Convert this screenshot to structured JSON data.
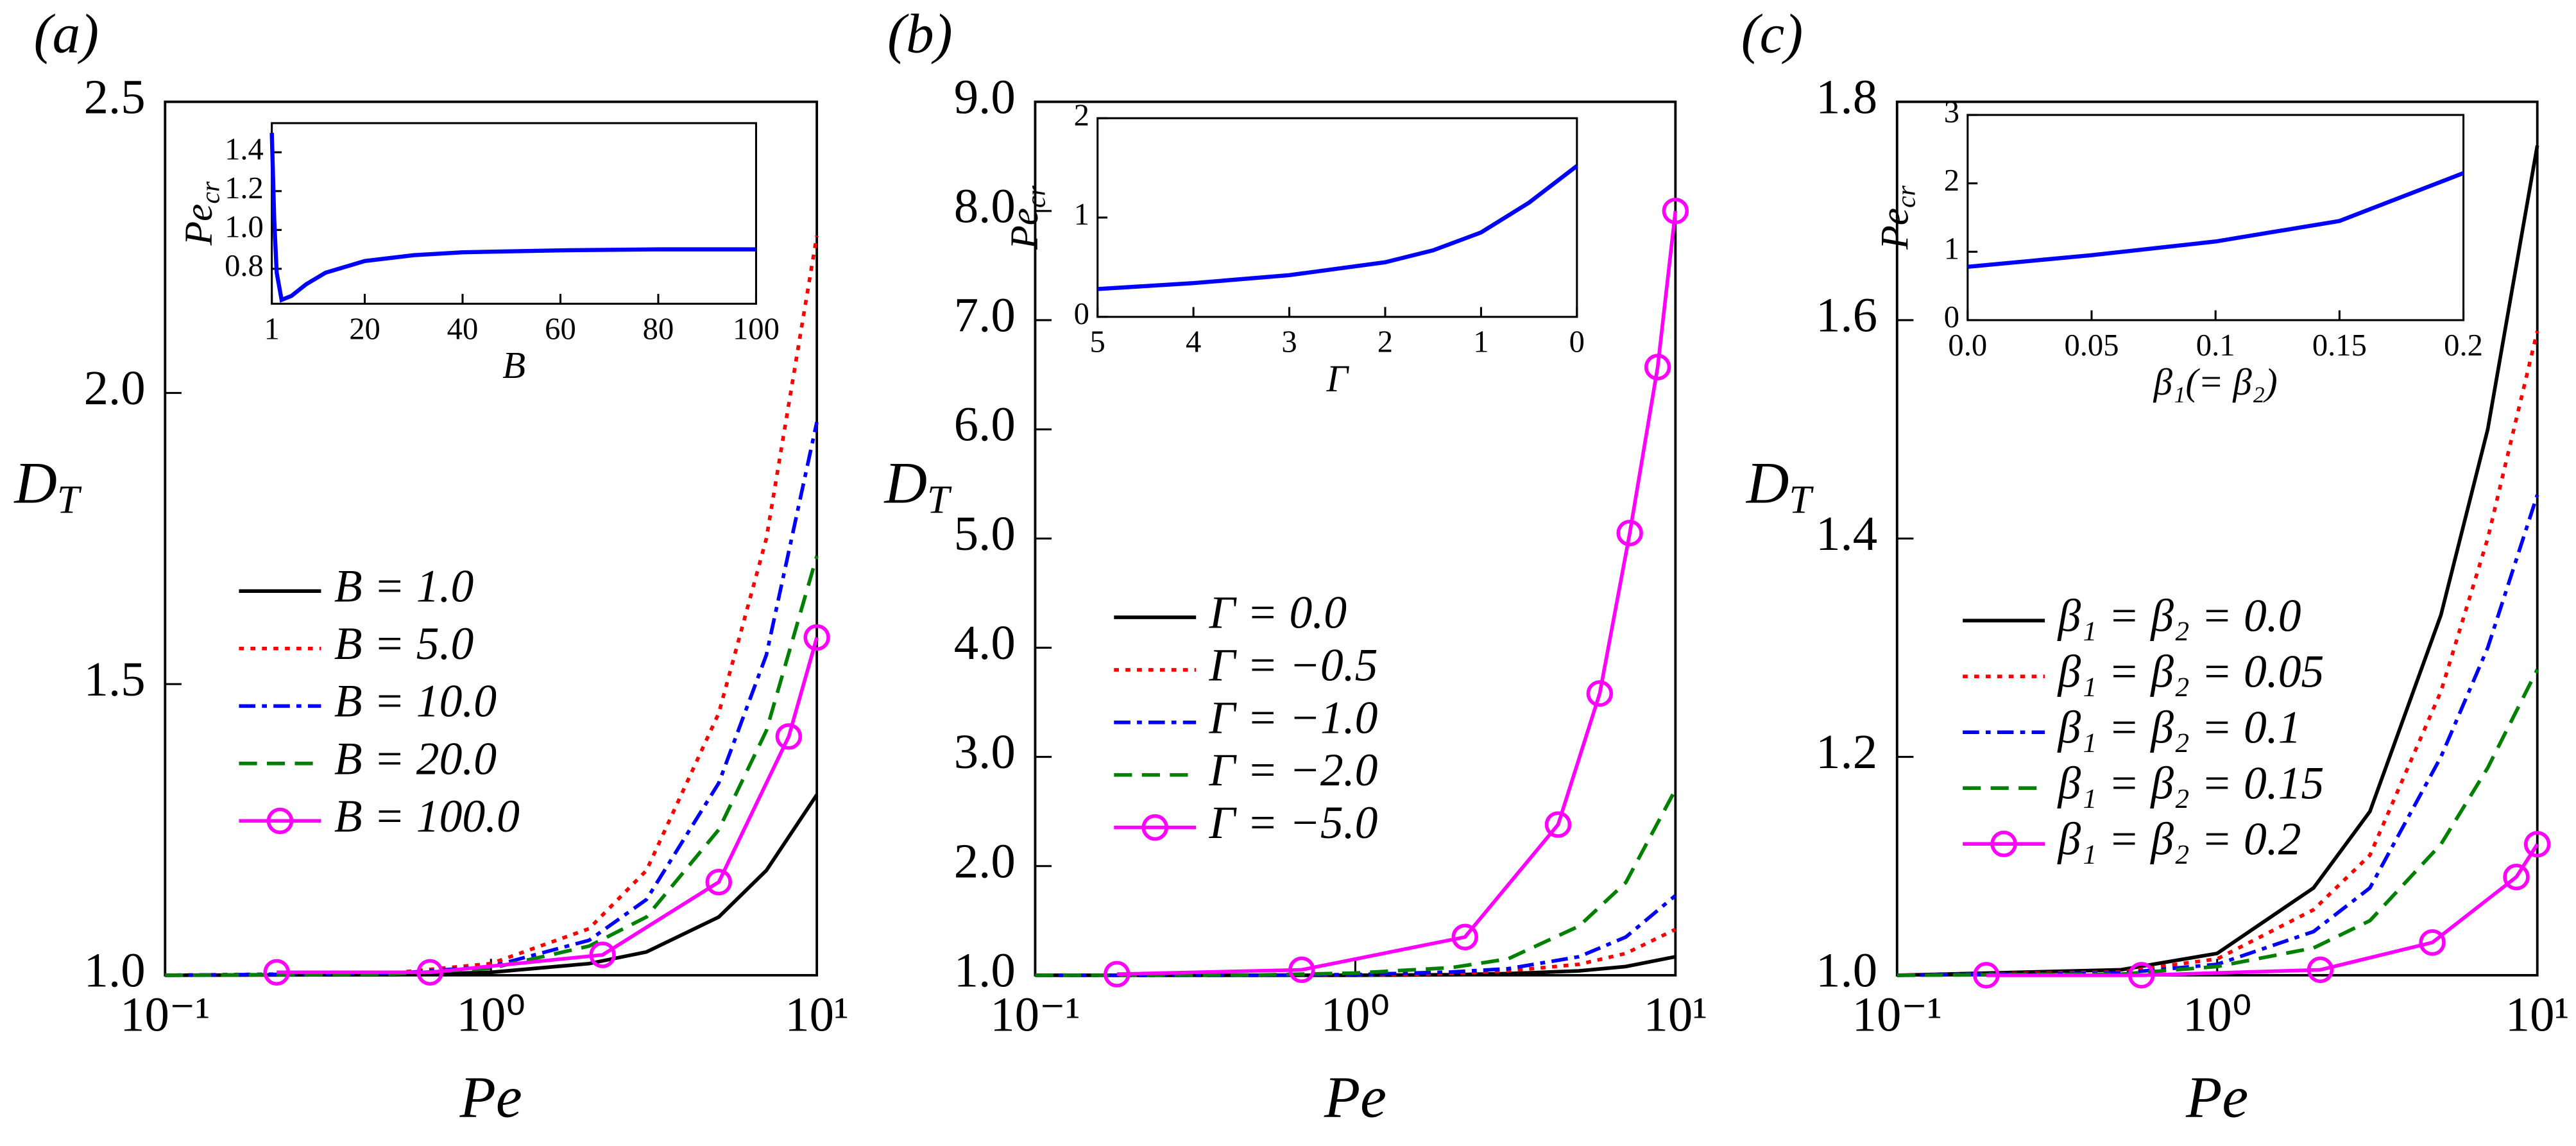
{
  "chart_data": [
    {
      "type": "line",
      "panel_label": "(a)",
      "xlabel": "Pe",
      "ylabel": [
        "D",
        "T"
      ],
      "xscale": "log",
      "xlim": [
        0.1,
        10
      ],
      "xticks": [
        {
          "value": 0.1,
          "label": "10⁻¹"
        },
        {
          "value": 1,
          "label": "10⁰"
        },
        {
          "value": 10,
          "label": "10¹"
        }
      ],
      "ylim": [
        1.0,
        2.5
      ],
      "yticks": [
        {
          "value": 1.0,
          "label": "1.0"
        },
        {
          "value": 1.5,
          "label": "1.5"
        },
        {
          "value": 2.0,
          "label": "2.0"
        },
        {
          "value": 2.5,
          "label": "2.5"
        }
      ],
      "series": [
        {
          "name": "B = 1.0",
          "color": "#000000",
          "dash": "solid",
          "x": [
            0.1,
            0.5,
            1,
            2,
            3,
            5,
            7,
            10
          ],
          "values": [
            1.0,
            1.001,
            1.005,
            1.02,
            1.04,
            1.1,
            1.18,
            1.31
          ]
        },
        {
          "name": "B = 5.0",
          "color": "#ff0000",
          "dash": "dotted",
          "x": [
            0.1,
            0.5,
            1,
            2,
            3,
            5,
            7,
            10
          ],
          "values": [
            1.0,
            1.004,
            1.02,
            1.08,
            1.18,
            1.45,
            1.75,
            2.27
          ]
        },
        {
          "name": "B = 10.0",
          "color": "#0000ff",
          "dash": "dashdot",
          "x": [
            0.1,
            0.5,
            1,
            2,
            3,
            5,
            7,
            10
          ],
          "values": [
            1.0,
            1.003,
            1.015,
            1.06,
            1.13,
            1.33,
            1.55,
            1.95
          ]
        },
        {
          "name": "B = 20.0",
          "color": "#008000",
          "dash": "dashed",
          "x": [
            0.1,
            0.5,
            1,
            2,
            3,
            5,
            7,
            10
          ],
          "values": [
            1.0,
            1.002,
            1.012,
            1.05,
            1.1,
            1.25,
            1.42,
            1.72
          ]
        },
        {
          "name": "B = 100.0",
          "color": "#ff00ff",
          "dash": "solid",
          "marker": "circle",
          "x": [
            0.22,
            0.65,
            2.2,
            5,
            8.2,
            10
          ],
          "values": [
            1.005,
            1.005,
            1.035,
            1.16,
            1.41,
            1.58
          ]
        }
      ],
      "inset": {
        "type": "line",
        "xlabel": "B",
        "ylabel": [
          "Pe",
          "cr"
        ],
        "xlim": [
          1,
          100
        ],
        "xticks": [
          1,
          20,
          40,
          60,
          80,
          100
        ],
        "ylim": [
          0.62,
          1.55
        ],
        "yticks": [
          {
            "value": 0.8,
            "label": "0.8"
          },
          {
            "value": 1.0,
            "label": "1.0"
          },
          {
            "value": 1.2,
            "label": "1.2"
          },
          {
            "value": 1.4,
            "label": "1.4"
          }
        ],
        "series": [
          {
            "color": "#0000ff",
            "x": [
              1,
              1.5,
              2,
              3,
              5,
              8,
              12,
              20,
              30,
              40,
              60,
              80,
              100
            ],
            "values": [
              1.5,
              1.05,
              0.78,
              0.64,
              0.66,
              0.72,
              0.78,
              0.84,
              0.87,
              0.885,
              0.895,
              0.9,
              0.9
            ]
          }
        ]
      }
    },
    {
      "type": "line",
      "panel_label": "(b)",
      "xlabel": "Pe",
      "ylabel": [
        "D",
        "T"
      ],
      "xscale": "log",
      "xlim": [
        0.1,
        10
      ],
      "xticks": [
        {
          "value": 0.1,
          "label": "10⁻¹"
        },
        {
          "value": 1,
          "label": "10⁰"
        },
        {
          "value": 10,
          "label": "10¹"
        }
      ],
      "ylim": [
        1.0,
        9.0
      ],
      "yticks": [
        {
          "value": 1,
          "label": "1.0"
        },
        {
          "value": 2,
          "label": "2.0"
        },
        {
          "value": 3,
          "label": "3.0"
        },
        {
          "value": 4,
          "label": "4.0"
        },
        {
          "value": 5,
          "label": "5.0"
        },
        {
          "value": 6,
          "label": "6.0"
        },
        {
          "value": 7,
          "label": "7.0"
        },
        {
          "value": 8,
          "label": "8.0"
        },
        {
          "value": 9,
          "label": "9.0"
        }
      ],
      "series": [
        {
          "name": "Γ = 0.0",
          "color": "#000000",
          "dash": "solid",
          "x": [
            0.1,
            0.5,
            1,
            2,
            3,
            5,
            7,
            10
          ],
          "values": [
            1.0,
            1.0,
            1.0,
            1.005,
            1.015,
            1.04,
            1.08,
            1.17
          ]
        },
        {
          "name": "Γ = −0.5",
          "color": "#ff0000",
          "dash": "dotted",
          "x": [
            0.1,
            0.5,
            1,
            2,
            3,
            5,
            7,
            10
          ],
          "values": [
            1.0,
            1.0,
            1.003,
            1.015,
            1.04,
            1.1,
            1.2,
            1.42
          ]
        },
        {
          "name": "Γ = −1.0",
          "color": "#0000ff",
          "dash": "dashdot",
          "x": [
            0.1,
            0.5,
            1,
            2,
            3,
            5,
            7,
            10
          ],
          "values": [
            1.0,
            1.0,
            1.006,
            1.03,
            1.06,
            1.17,
            1.35,
            1.73
          ]
        },
        {
          "name": "Γ = −2.0",
          "color": "#008000",
          "dash": "dashed",
          "x": [
            0.1,
            0.5,
            1,
            2,
            3,
            5,
            7,
            10
          ],
          "values": [
            1.0,
            1.002,
            1.02,
            1.07,
            1.15,
            1.45,
            1.85,
            2.7
          ]
        },
        {
          "name": "Γ = −5.0",
          "color": "#ff00ff",
          "dash": "solid",
          "marker": "circle",
          "x": [
            0.18,
            0.68,
            2.2,
            4.3,
            5.8,
            7.2,
            8.8,
            10
          ],
          "values": [
            1.01,
            1.05,
            1.35,
            2.38,
            3.58,
            5.05,
            6.57,
            8.0
          ]
        }
      ],
      "inset": {
        "type": "line",
        "xlabel": "Γ",
        "ylabel": [
          "Pe",
          "cr"
        ],
        "xlim": [
          5,
          0
        ],
        "xticks": [
          5,
          4,
          3,
          2,
          1,
          0
        ],
        "ylim": [
          0,
          2
        ],
        "yticks": [
          0,
          1,
          2
        ],
        "series": [
          {
            "color": "#0000ff",
            "x": [
              5,
              4,
              3,
              2,
              1.5,
              1,
              0.5,
              0
            ],
            "values": [
              0.28,
              0.34,
              0.42,
              0.55,
              0.67,
              0.85,
              1.15,
              1.52
            ]
          }
        ]
      }
    },
    {
      "type": "line",
      "panel_label": "(c)",
      "xlabel": "Pe",
      "ylabel": [
        "D",
        "T"
      ],
      "xscale": "log",
      "xlim": [
        0.1,
        10
      ],
      "xticks": [
        {
          "value": 0.1,
          "label": "10⁻¹"
        },
        {
          "value": 1,
          "label": "10⁰"
        },
        {
          "value": 10,
          "label": "10¹"
        }
      ],
      "ylim": [
        1.0,
        1.8
      ],
      "yticks": [
        {
          "value": 1.0,
          "label": "1.0"
        },
        {
          "value": 1.2,
          "label": "1.2"
        },
        {
          "value": 1.4,
          "label": "1.4"
        },
        {
          "value": 1.6,
          "label": "1.6"
        },
        {
          "value": 1.8,
          "label": "1.8"
        }
      ],
      "series": [
        {
          "name": "β₁ = β₂ = 0.0",
          "color": "#000000",
          "dash": "solid",
          "x": [
            0.1,
            0.5,
            1,
            2,
            3,
            5,
            7,
            10
          ],
          "values": [
            1.0,
            1.005,
            1.02,
            1.08,
            1.15,
            1.33,
            1.5,
            1.76
          ]
        },
        {
          "name": "β₁ = β₂ = 0.05",
          "color": "#ff0000",
          "dash": "dotted",
          "x": [
            0.1,
            0.5,
            1,
            2,
            3,
            5,
            7,
            10
          ],
          "values": [
            1.0,
            1.003,
            1.015,
            1.06,
            1.11,
            1.26,
            1.4,
            1.59
          ]
        },
        {
          "name": "β₁ = β₂ = 0.1",
          "color": "#0000ff",
          "dash": "dashdot",
          "x": [
            0.1,
            0.5,
            1,
            2,
            3,
            5,
            7,
            10
          ],
          "values": [
            1.0,
            1.002,
            1.01,
            1.04,
            1.08,
            1.2,
            1.3,
            1.44
          ]
        },
        {
          "name": "β₁ = β₂ = 0.15",
          "color": "#008000",
          "dash": "dashed",
          "x": [
            0.1,
            0.5,
            1,
            2,
            3,
            5,
            7,
            10
          ],
          "values": [
            1.0,
            1.001,
            1.008,
            1.025,
            1.05,
            1.12,
            1.19,
            1.28
          ]
        },
        {
          "name": "β₁ = β₂ = 0.2",
          "color": "#ff00ff",
          "dash": "solid",
          "marker": "circle",
          "x": [
            0.19,
            0.58,
            2.1,
            4.7,
            8.6,
            10
          ],
          "values": [
            1.0,
            1.0,
            1.005,
            1.03,
            1.09,
            1.12
          ]
        }
      ],
      "inset": {
        "type": "line",
        "xlabel": "β₁(= β₂)",
        "ylabel": [
          "Pe",
          "cr"
        ],
        "xlim": [
          0,
          0.2
        ],
        "xticks": [
          {
            "value": 0,
            "label": "0.0"
          },
          0.05,
          0.1,
          0.15,
          0.2
        ],
        "ylim": [
          0,
          3
        ],
        "yticks": [
          0,
          1,
          2,
          3
        ],
        "series": [
          {
            "color": "#0000ff",
            "x": [
              0,
              0.05,
              0.1,
              0.15,
              0.2
            ],
            "values": [
              0.78,
              0.95,
              1.15,
              1.45,
              2.15
            ]
          }
        ]
      }
    }
  ]
}
